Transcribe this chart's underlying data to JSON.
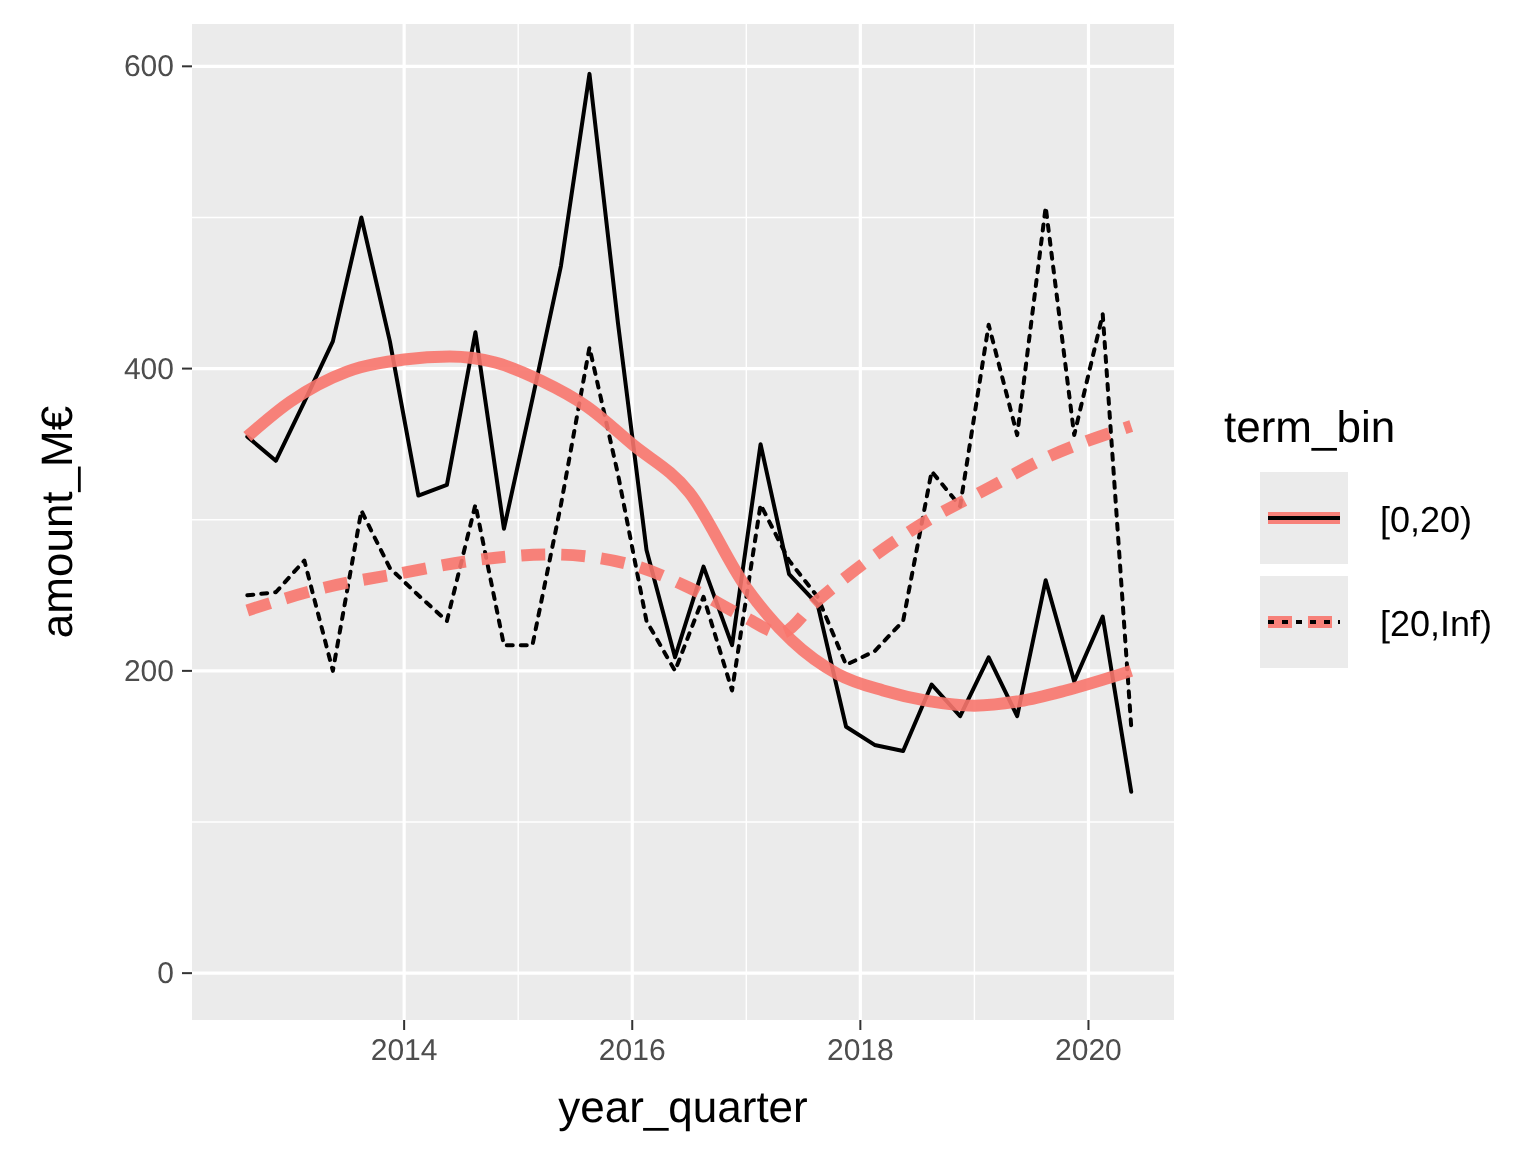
{
  "chart_data": {
    "type": "line",
    "xlabel": "year_quarter",
    "ylabel": "amount_M€",
    "legend_title": "term_bin",
    "xlim": [
      2012.14,
      2020.75
    ],
    "xticks": [
      2014,
      2016,
      2018,
      2020
    ],
    "ylim": [
      -31,
      628
    ],
    "yticks": [
      0,
      200,
      400,
      600
    ],
    "grid": true,
    "legend": "right",
    "series": [
      {
        "name": "[0,20)",
        "color": "#000000",
        "line_style": "solid",
        "x": [
          2012.625,
          2012.875,
          2013.125,
          2013.375,
          2013.625,
          2013.875,
          2014.125,
          2014.375,
          2014.625,
          2014.875,
          2015.125,
          2015.375,
          2015.625,
          2015.875,
          2016.125,
          2016.375,
          2016.625,
          2016.875,
          2017.125,
          2017.375,
          2017.625,
          2017.875,
          2018.125,
          2018.375,
          2018.625,
          2018.875,
          2019.125,
          2019.375,
          2019.625,
          2019.875,
          2020.125,
          2020.375
        ],
        "values": [
          355,
          339,
          378,
          418,
          500,
          418,
          316,
          323,
          424,
          294,
          380,
          468,
          595,
          430,
          280,
          209,
          269,
          217,
          350,
          264,
          244,
          163,
          151,
          147,
          191,
          170,
          209,
          170,
          260,
          193,
          236,
          120
        ]
      },
      {
        "name": "[20,Inf)",
        "color": "#000000",
        "line_style": "dotted",
        "x": [
          2012.625,
          2012.875,
          2013.125,
          2013.375,
          2013.625,
          2013.875,
          2014.125,
          2014.375,
          2014.625,
          2014.875,
          2015.125,
          2015.375,
          2015.625,
          2015.875,
          2016.125,
          2016.375,
          2016.625,
          2016.875,
          2017.125,
          2017.375,
          2017.625,
          2017.875,
          2018.125,
          2018.375,
          2018.625,
          2018.875,
          2019.125,
          2019.375,
          2019.625,
          2019.875,
          2020.125,
          2020.375
        ],
        "values": [
          250,
          252,
          273,
          200,
          306,
          268,
          250,
          233,
          310,
          217,
          217,
          310,
          414,
          330,
          233,
          200,
          249,
          187,
          310,
          273,
          249,
          204,
          213,
          233,
          332,
          309,
          429,
          356,
          507,
          356,
          436,
          163
        ]
      },
      {
        "color": "#f8766d",
        "line_style": "solid",
        "x": [
          2012.625,
          2013,
          2013.5,
          2014,
          2014.4,
          2014.8,
          2015.2,
          2015.6,
          2016,
          2016.5,
          2017,
          2017.4,
          2017.8,
          2018.2,
          2018.6,
          2019,
          2019.4,
          2019.8,
          2020.375
        ],
        "values": [
          355,
          378,
          398,
          406,
          408,
          404,
          392,
          375,
          350,
          318,
          255,
          220,
          198,
          187,
          180,
          177,
          180,
          187,
          200
        ]
      },
      {
        "color": "#f8766d",
        "line_style": "dashed",
        "x": [
          2012.625,
          2013.3,
          2014,
          2014.6,
          2015.3,
          2016,
          2016.5,
          2017,
          2017.3,
          2017.6,
          2018.1,
          2018.6,
          2019.1,
          2019.6,
          2020.375
        ],
        "values": [
          240,
          255,
          265,
          273,
          277,
          270,
          255,
          235,
          225,
          245,
          275,
          300,
          320,
          340,
          362
        ]
      }
    ]
  }
}
